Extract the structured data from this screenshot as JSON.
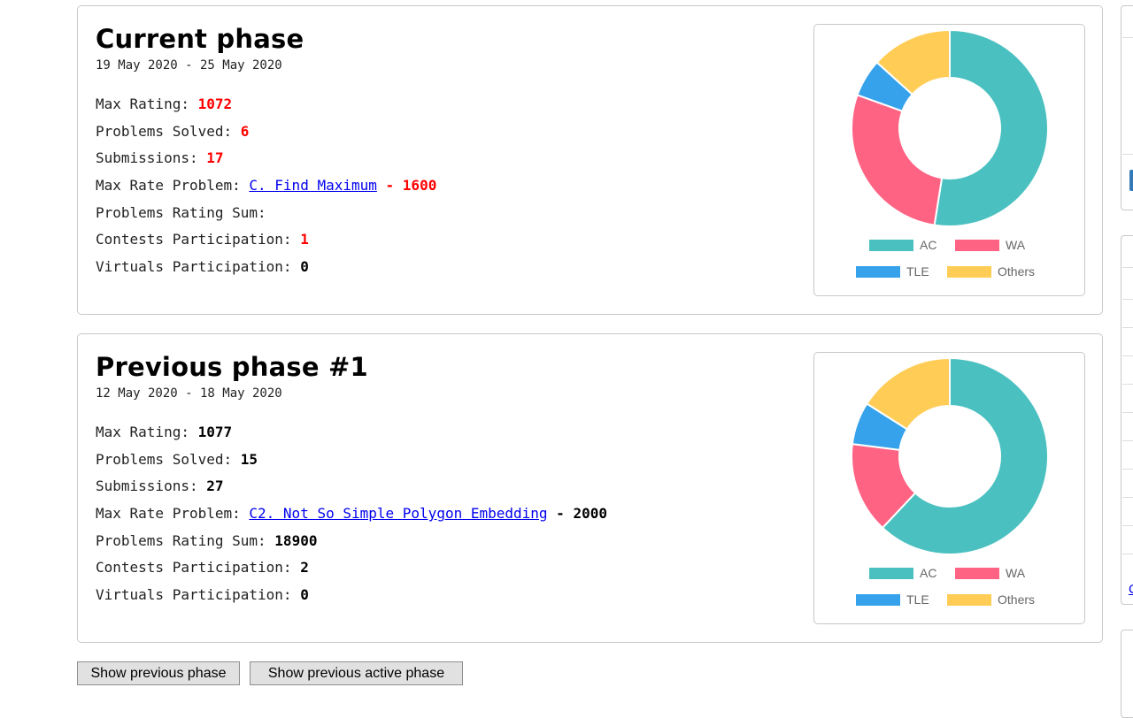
{
  "phases": [
    {
      "title": "Current phase",
      "dates": "19 May 2020 - 25 May 2020",
      "value_color": "#ff0000",
      "stats": {
        "max_rating": {
          "label": "Max Rating: ",
          "value": "1072"
        },
        "problems_solved": {
          "label": "Problems Solved: ",
          "value": "6"
        },
        "submissions": {
          "label": "Submissions: ",
          "value": "17"
        },
        "max_rate_problem": {
          "label": "Max Rate Problem: ",
          "link": "C. Find Maximum",
          "sep": " - ",
          "value": "1600"
        },
        "problems_rating_sum": {
          "label": "Problems Rating Sum: ",
          "value": ""
        },
        "contests_participation": {
          "label": "Contests Participation: ",
          "value": "1"
        },
        "virtuals_participation": {
          "label": "Virtuals Participation: ",
          "value": "0"
        }
      }
    },
    {
      "title": "Previous phase #1",
      "dates": "12 May 2020 - 18 May 2020",
      "value_color": "#000000",
      "stats": {
        "max_rating": {
          "label": "Max Rating: ",
          "value": "1077"
        },
        "problems_solved": {
          "label": "Problems Solved: ",
          "value": "15"
        },
        "submissions": {
          "label": "Submissions: ",
          "value": "27"
        },
        "max_rate_problem": {
          "label": "Max Rate Problem: ",
          "link": "C2. Not So Simple Polygon Embedding",
          "sep": " - ",
          "value": "2000"
        },
        "problems_rating_sum": {
          "label": "Problems Rating Sum: ",
          "value": "18900"
        },
        "contests_participation": {
          "label": "Contests Participation: ",
          "value": "2"
        },
        "virtuals_participation": {
          "label": "Virtuals Participation: ",
          "value": "0"
        }
      }
    }
  ],
  "chart_data": [
    {
      "type": "pie",
      "variant": "doughnut",
      "categories": [
        "AC",
        "WA",
        "TLE",
        "Others"
      ],
      "values": [
        0.525,
        0.28,
        0.062,
        0.133
      ],
      "colors": [
        "#4bc0c0",
        "#ff6384",
        "#36a2eb",
        "#ffcd56"
      ],
      "legend": "bottom"
    },
    {
      "type": "pie",
      "variant": "doughnut",
      "categories": [
        "AC",
        "WA",
        "TLE",
        "Others"
      ],
      "values": [
        0.62,
        0.15,
        0.07,
        0.16
      ],
      "colors": [
        "#4bc0c0",
        "#ff6384",
        "#36a2eb",
        "#ffcd56"
      ],
      "legend": "bottom"
    }
  ],
  "buttons": {
    "show_previous_phase": "Show previous phase",
    "show_previous_active_phase": "Show previous active phase"
  },
  "sidebar": {
    "link_fragment": "C"
  }
}
